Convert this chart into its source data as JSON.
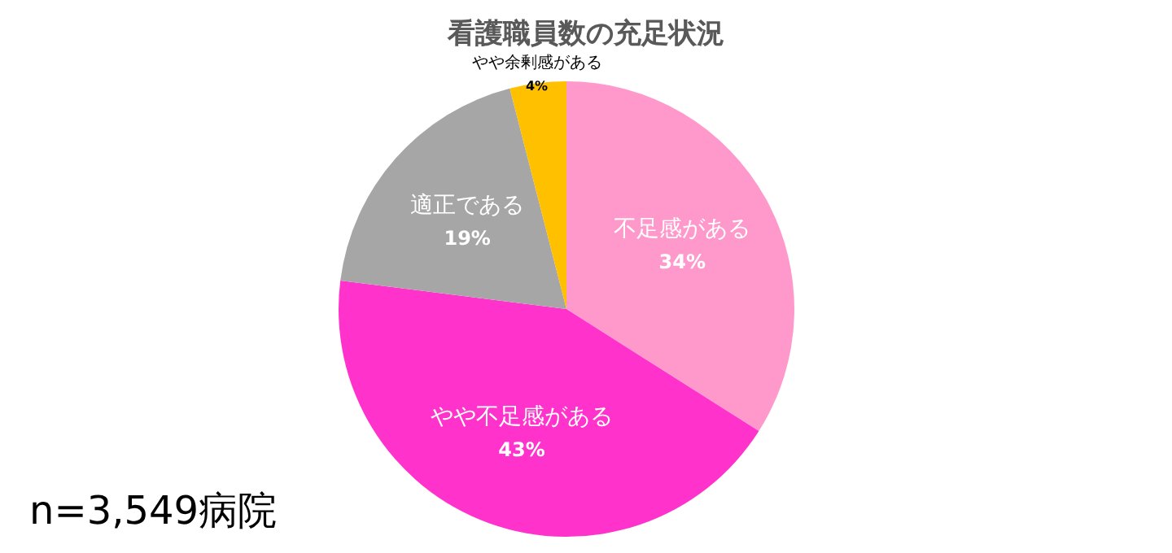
{
  "chart_data": {
    "type": "pie",
    "title": "看護職員数の充足状況",
    "categories": [
      "不足感がある",
      "やや不足感がある",
      "適正である",
      "やや余剰感がある"
    ],
    "values": [
      34,
      43,
      19,
      4
    ],
    "value_labels": [
      "34%",
      "43%",
      "19%",
      "4%"
    ],
    "colors": [
      "#ff99cc",
      "#ff33cc",
      "#a6a6a6",
      "#ffc000"
    ],
    "annotations": [
      "n=3,549病院"
    ]
  }
}
